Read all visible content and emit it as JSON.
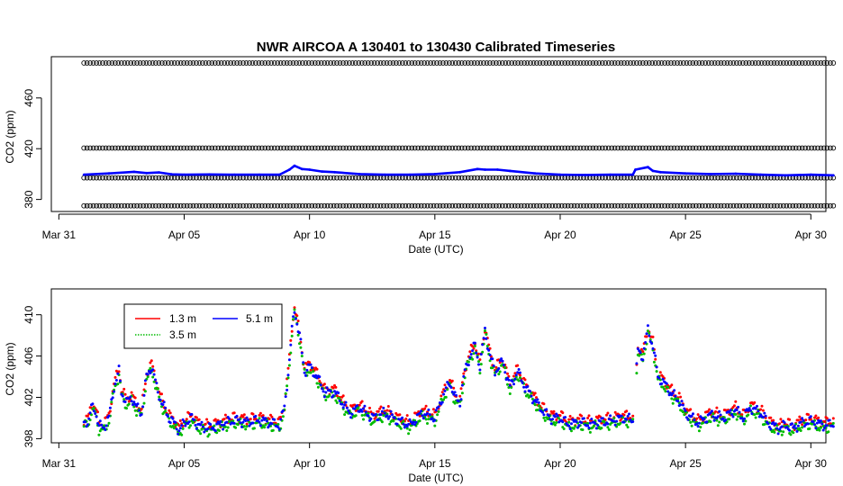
{
  "chart_data": [
    {
      "type": "scatter",
      "title": "NWR   AIRCOA  A   130401  to  130430   Calibrated Timeseries",
      "xlabel": "Date (UTC)",
      "ylabel": "CO2 (ppm)",
      "xlim": [
        -0.3,
        30.6
      ],
      "ylim": [
        370.5,
        492.5
      ],
      "x_ticks": [
        {
          "value": 0,
          "label": "Mar 31"
        },
        {
          "value": 5,
          "label": "Apr 05"
        },
        {
          "value": 10,
          "label": "Apr 10"
        },
        {
          "value": 15,
          "label": "Apr 15"
        },
        {
          "value": 20,
          "label": "Apr 20"
        },
        {
          "value": 25,
          "label": "Apr 25"
        },
        {
          "value": 30,
          "label": "Apr 30"
        }
      ],
      "y_ticks": [
        {
          "value": 380,
          "label": "380"
        },
        {
          "value": 420,
          "label": "420"
        },
        {
          "value": 460,
          "label": "460"
        }
      ],
      "reference_series": [
        {
          "value": 487.5,
          "x_start": 1.0,
          "x_end": 30.9,
          "color": "#000000",
          "marker": "open-circle"
        },
        {
          "value": 420.5,
          "x_start": 1.0,
          "x_end": 30.9,
          "color": "#000000",
          "marker": "open-circle"
        },
        {
          "value": 397.0,
          "x_start": 1.0,
          "x_end": 30.9,
          "color": "#000000",
          "marker": "open-circle"
        },
        {
          "value": 375.0,
          "x_start": 1.0,
          "x_end": 30.9,
          "color": "#000000",
          "marker": "open-circle"
        }
      ],
      "series": [
        {
          "color": "#0000ff",
          "points": [
            [
              1.0,
              399.5
            ],
            [
              2.0,
              400.5
            ],
            [
              3.0,
              401.8
            ],
            [
              3.5,
              400.8
            ],
            [
              4.0,
              401.3
            ],
            [
              4.5,
              399.8
            ],
            [
              5.0,
              399.5
            ],
            [
              6.0,
              399.7
            ],
            [
              7.0,
              399.5
            ],
            [
              8.0,
              399.5
            ],
            [
              8.8,
              399.5
            ],
            [
              9.2,
              403.5
            ],
            [
              9.4,
              406.5
            ],
            [
              9.7,
              404.0
            ],
            [
              10.0,
              403.5
            ],
            [
              10.5,
              402.0
            ],
            [
              11.0,
              401.5
            ],
            [
              12.0,
              400.0
            ],
            [
              13.0,
              399.5
            ],
            [
              14.0,
              399.5
            ],
            [
              15.0,
              400.0
            ],
            [
              16.0,
              401.5
            ],
            [
              16.7,
              404.0
            ],
            [
              17.0,
              403.5
            ],
            [
              17.5,
              403.5
            ],
            [
              18.0,
              402.5
            ],
            [
              19.0,
              400.5
            ],
            [
              20.0,
              399.5
            ],
            [
              21.0,
              399.3
            ],
            [
              22.0,
              399.5
            ],
            [
              22.9,
              399.5
            ],
            [
              23.0,
              403.5
            ],
            [
              23.5,
              405.5
            ],
            [
              23.7,
              402.5
            ],
            [
              24.0,
              401.5
            ],
            [
              25.0,
              400.5
            ],
            [
              26.0,
              400.0
            ],
            [
              27.0,
              400.3
            ],
            [
              28.0,
              399.5
            ],
            [
              29.0,
              399.0
            ],
            [
              30.0,
              399.5
            ],
            [
              30.9,
              399.0
            ]
          ]
        }
      ]
    },
    {
      "type": "scatter",
      "title": "",
      "xlabel": "Date (UTC)",
      "ylabel": "CO2 (ppm)",
      "xlim": [
        -0.3,
        30.6
      ],
      "ylim": [
        397.6,
        412.5
      ],
      "x_ticks": [
        {
          "value": 0,
          "label": "Mar 31"
        },
        {
          "value": 5,
          "label": "Apr 05"
        },
        {
          "value": 10,
          "label": "Apr 10"
        },
        {
          "value": 15,
          "label": "Apr 15"
        },
        {
          "value": 20,
          "label": "Apr 20"
        },
        {
          "value": 25,
          "label": "Apr 25"
        },
        {
          "value": 30,
          "label": "Apr 30"
        }
      ],
      "y_ticks": [
        {
          "value": 398,
          "label": "398"
        },
        {
          "value": 402,
          "label": "402"
        },
        {
          "value": 406,
          "label": "406"
        },
        {
          "value": 410,
          "label": "410"
        }
      ],
      "legend_position": "top-left",
      "series": [
        {
          "name": "1.3 m",
          "color": "#ff0000",
          "offset": 0.3
        },
        {
          "name": "3.5 m",
          "color": "#00bb00",
          "offset": -0.3
        },
        {
          "name": "5.1 m",
          "color": "#0000ff",
          "offset": 0.0
        }
      ],
      "profile": [
        [
          1.0,
          399.5
        ],
        [
          1.2,
          399.8
        ],
        [
          1.3,
          401.0
        ],
        [
          1.45,
          400.8
        ],
        [
          1.6,
          399.2
        ],
        [
          1.8,
          399.1
        ],
        [
          2.0,
          400.0
        ],
        [
          2.2,
          403.0
        ],
        [
          2.4,
          404.5
        ],
        [
          2.5,
          402.5
        ],
        [
          2.7,
          401.5
        ],
        [
          2.9,
          402.0
        ],
        [
          3.1,
          401.0
        ],
        [
          3.3,
          400.5
        ],
        [
          3.5,
          404.0
        ],
        [
          3.7,
          405.0
        ],
        [
          3.9,
          403.0
        ],
        [
          4.1,
          401.5
        ],
        [
          4.4,
          400.0
        ],
        [
          4.6,
          399.5
        ],
        [
          4.8,
          398.8
        ],
        [
          5.0,
          399.5
        ],
        [
          5.3,
          400.0
        ],
        [
          5.6,
          399.2
        ],
        [
          6.0,
          399.0
        ],
        [
          6.5,
          399.4
        ],
        [
          7.0,
          399.8
        ],
        [
          7.5,
          399.6
        ],
        [
          8.0,
          399.8
        ],
        [
          8.5,
          399.5
        ],
        [
          8.8,
          399.3
        ],
        [
          9.0,
          401.0
        ],
        [
          9.2,
          405.5
        ],
        [
          9.3,
          408.5
        ],
        [
          9.4,
          410.5
        ],
        [
          9.6,
          408.0
        ],
        [
          9.8,
          404.5
        ],
        [
          10.0,
          405.0
        ],
        [
          10.3,
          404.0
        ],
        [
          10.6,
          402.5
        ],
        [
          11.0,
          402.5
        ],
        [
          11.3,
          401.5
        ],
        [
          11.6,
          400.5
        ],
        [
          12.0,
          401.0
        ],
        [
          12.5,
          400.0
        ],
        [
          13.0,
          400.5
        ],
        [
          13.5,
          399.8
        ],
        [
          14.0,
          399.3
        ],
        [
          14.5,
          400.5
        ],
        [
          15.0,
          400.0
        ],
        [
          15.3,
          402.0
        ],
        [
          15.6,
          403.5
        ],
        [
          15.8,
          402.0
        ],
        [
          16.0,
          401.5
        ],
        [
          16.2,
          404.5
        ],
        [
          16.4,
          406.0
        ],
        [
          16.6,
          407.0
        ],
        [
          16.8,
          405.0
        ],
        [
          17.0,
          408.5
        ],
        [
          17.2,
          406.0
        ],
        [
          17.4,
          404.5
        ],
        [
          17.7,
          405.5
        ],
        [
          18.0,
          403.0
        ],
        [
          18.3,
          404.5
        ],
        [
          18.6,
          403.0
        ],
        [
          18.9,
          402.0
        ],
        [
          19.2,
          401.0
        ],
        [
          19.6,
          400.0
        ],
        [
          20.0,
          400.0
        ],
        [
          20.3,
          399.4
        ],
        [
          20.8,
          399.6
        ],
        [
          21.2,
          399.4
        ],
        [
          21.6,
          399.6
        ],
        [
          22.0,
          399.7
        ],
        [
          22.5,
          400.0
        ],
        [
          22.9,
          399.8
        ],
        [
          23.1,
          406.5
        ],
        [
          23.3,
          406.0
        ],
        [
          23.5,
          408.5
        ],
        [
          23.7,
          407.0
        ],
        [
          23.9,
          404.0
        ],
        [
          24.1,
          403.5
        ],
        [
          24.4,
          402.5
        ],
        [
          24.8,
          401.5
        ],
        [
          25.0,
          400.5
        ],
        [
          25.5,
          399.5
        ],
        [
          26.0,
          400.3
        ],
        [
          26.5,
          400.0
        ],
        [
          27.0,
          400.8
        ],
        [
          27.3,
          400.0
        ],
        [
          27.6,
          401.0
        ],
        [
          28.0,
          400.5
        ],
        [
          28.3,
          399.5
        ],
        [
          28.7,
          399.0
        ],
        [
          29.0,
          399.3
        ],
        [
          29.3,
          399.0
        ],
        [
          29.6,
          399.5
        ],
        [
          30.0,
          399.7
        ],
        [
          30.5,
          399.3
        ],
        [
          30.9,
          399.4
        ]
      ]
    }
  ]
}
